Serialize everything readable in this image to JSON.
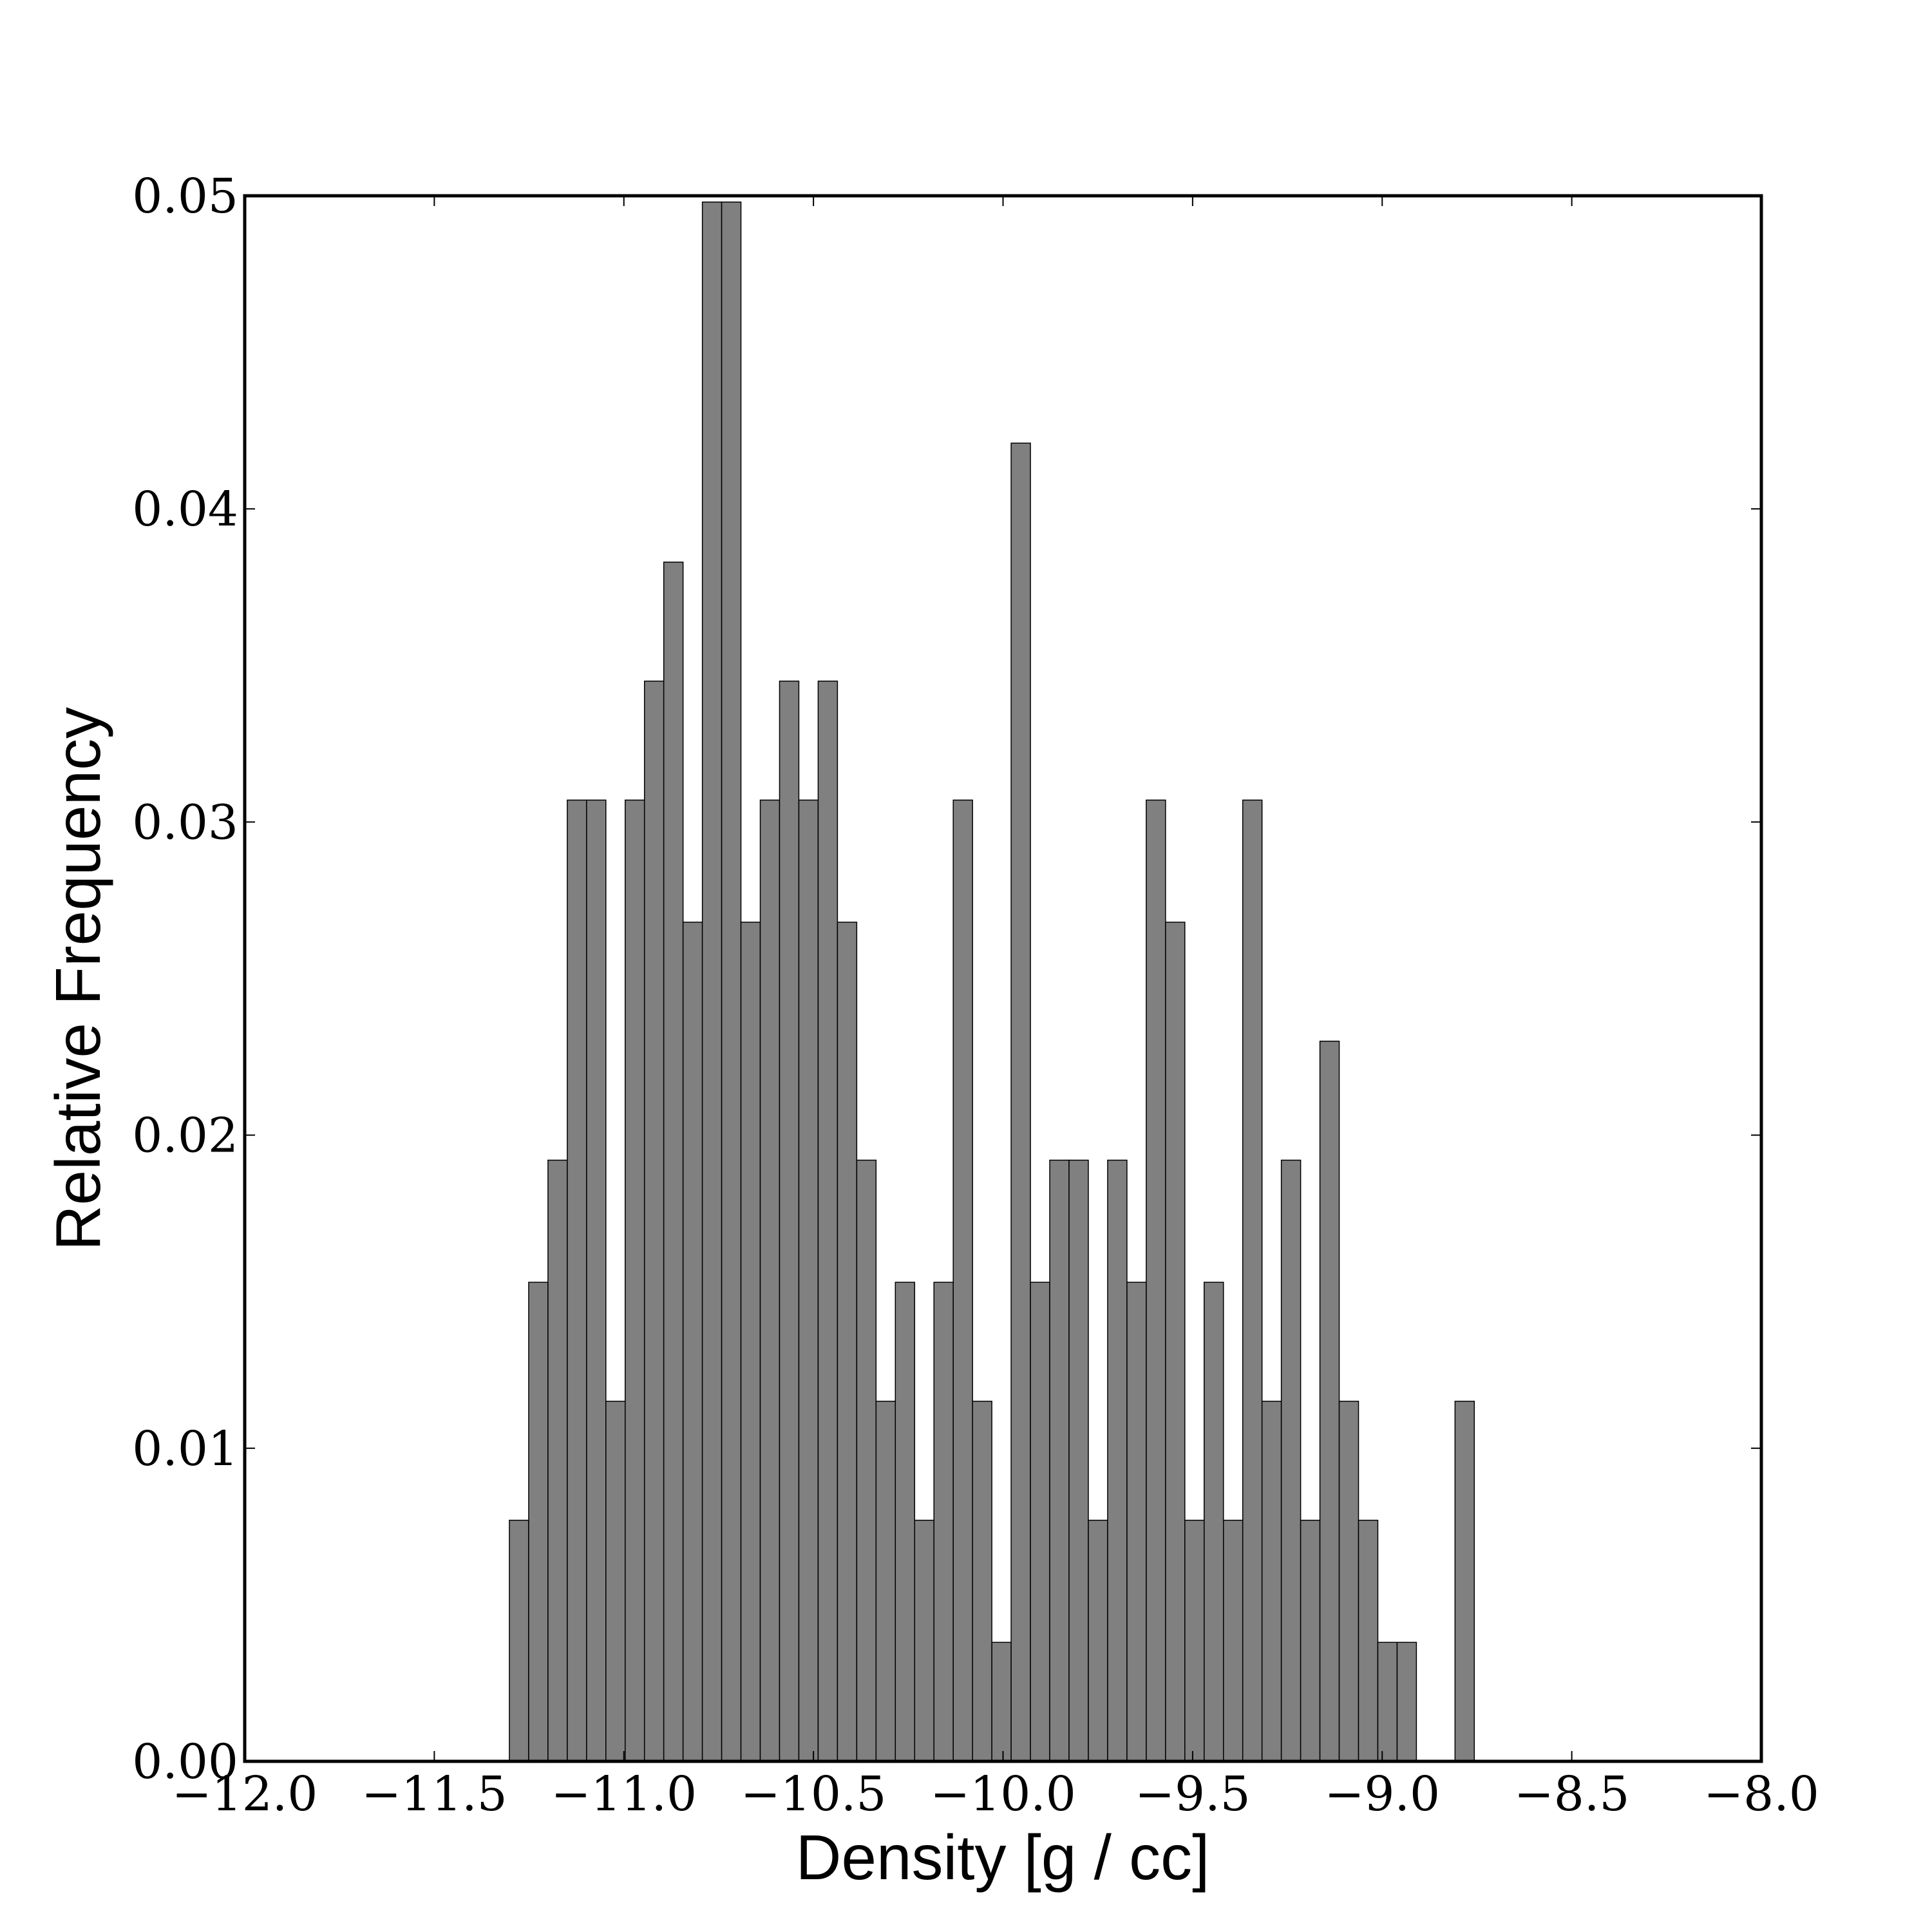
{
  "chart_data": {
    "type": "histogram",
    "xlabel": "Density [g / cc]",
    "ylabel": "Relative Frequency",
    "bins": [
      -11.302,
      -11.2511,
      -11.2002,
      -11.1493,
      -11.0984,
      -11.0475,
      -10.9966,
      -10.9457,
      -10.8948,
      -10.8439,
      -10.793,
      -10.7421,
      -10.6912,
      -10.6403,
      -10.5894,
      -10.5385,
      -10.4876,
      -10.4367,
      -10.3858,
      -10.3349,
      -10.284,
      -10.2331,
      -10.1822,
      -10.1313,
      -10.0804,
      -10.0295,
      -9.9786,
      -9.9277,
      -9.8768,
      -9.8259,
      -9.775,
      -9.7241,
      -9.6732,
      -9.6223,
      -9.5714,
      -9.5205,
      -9.4696,
      -9.4187,
      -9.3678,
      -9.3169,
      -9.266,
      -9.2151,
      -9.1642,
      -9.1133,
      -9.0624,
      -9.0115,
      -8.9606,
      -8.9097,
      -8.8588,
      -8.8079,
      -8.757
    ],
    "values": [
      0.0077,
      0.0153,
      0.0192,
      0.0307,
      0.0307,
      0.0115,
      0.0307,
      0.0345,
      0.0383,
      0.0268,
      0.0498,
      0.0498,
      0.0268,
      0.0307,
      0.0345,
      0.0307,
      0.0345,
      0.0268,
      0.0192,
      0.0115,
      0.0153,
      0.0077,
      0.0153,
      0.0307,
      0.0115,
      0.0038,
      0.0421,
      0.0153,
      0.0192,
      0.0192,
      0.0077,
      0.0192,
      0.0153,
      0.0307,
      0.0268,
      0.0077,
      0.0153,
      0.0077,
      0.0307,
      0.0115,
      0.0192,
      0.0077,
      0.023,
      0.0115,
      0.0077,
      0.0038,
      0.0038,
      0,
      0,
      0.0115
    ],
    "color": "#808080",
    "xlim": [
      -12,
      -8
    ],
    "xticks": [
      {
        "value": -12,
        "label": "−12.0"
      },
      {
        "value": -11.5,
        "label": "−11.5"
      },
      {
        "value": -11,
        "label": "−11.0"
      },
      {
        "value": -10.5,
        "label": "−10.5"
      },
      {
        "value": -10,
        "label": "−10.0"
      },
      {
        "value": -9.5,
        "label": "−9.5"
      },
      {
        "value": -9,
        "label": "−9.0"
      },
      {
        "value": -8.5,
        "label": "−8.5"
      },
      {
        "value": -8,
        "label": "−8.0"
      }
    ],
    "ylim": [
      0,
      0.05
    ],
    "yticks": [
      {
        "value": 0,
        "label": "0.00"
      },
      0.01,
      0.02,
      0.03,
      0.04,
      0.05
    ],
    "grid": false
  }
}
